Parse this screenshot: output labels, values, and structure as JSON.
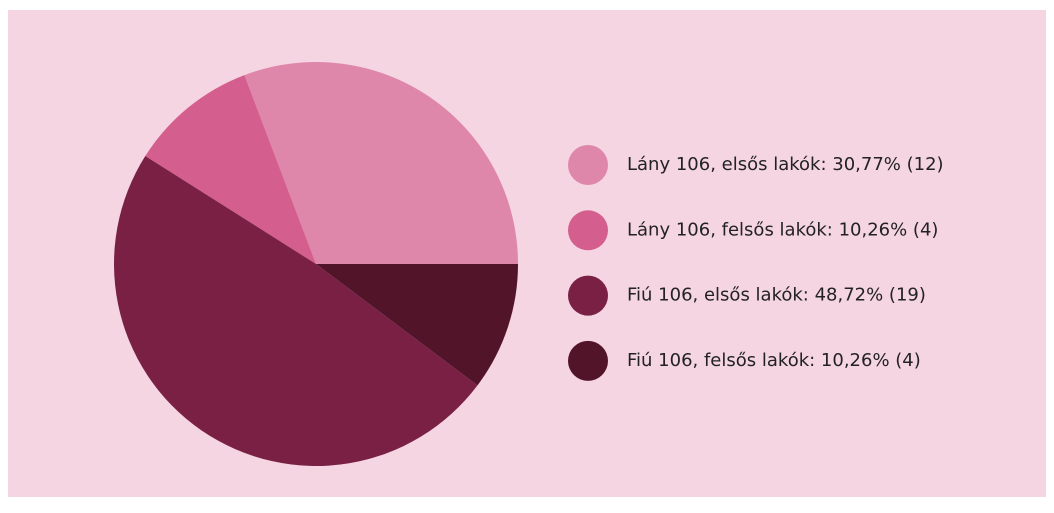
{
  "chart_data": {
    "type": "pie",
    "categories": [
      "Lány 106, elsős lakók: 30,77% (12)",
      "Lány 106, felsős lakók: 10,26% (4)",
      "Fiú 106, elsős lakók: 48,72% (19)",
      "Fiú 106, felsős lakók: 10,26% (4)"
    ],
    "values": [
      30.77,
      10.26,
      48.72,
      10.26
    ],
    "colors": [
      "#de87aa",
      "#d45f8e",
      "#7a2045",
      "#521429"
    ],
    "legend": "right"
  }
}
